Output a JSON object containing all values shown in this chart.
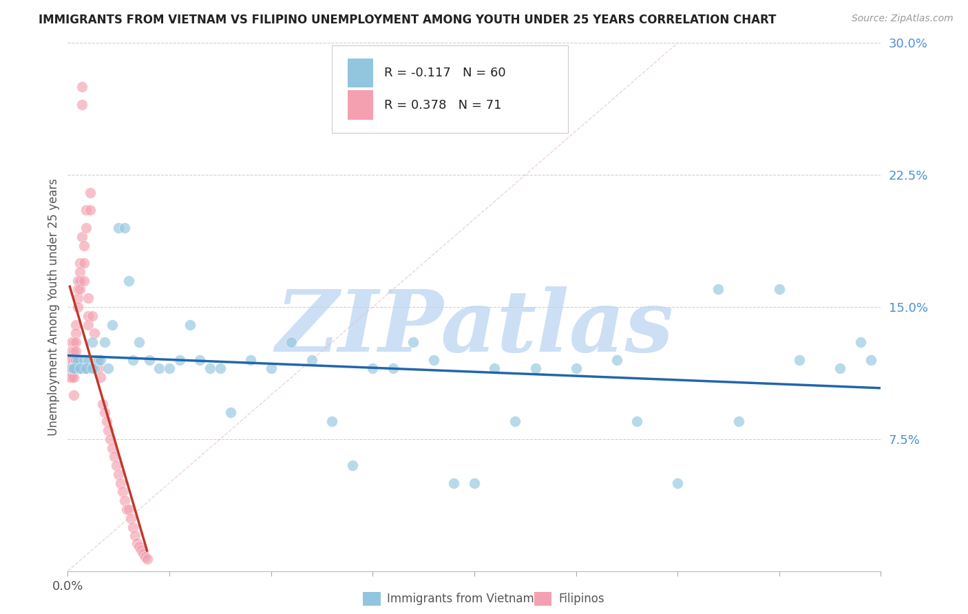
{
  "title": "IMMIGRANTS FROM VIETNAM VS FILIPINO UNEMPLOYMENT AMONG YOUTH UNDER 25 YEARS CORRELATION CHART",
  "source": "Source: ZipAtlas.com",
  "ylabel": "Unemployment Among Youth under 25 years",
  "xlim": [
    0.0,
    0.4
  ],
  "ylim": [
    0.0,
    0.3
  ],
  "xticks": [
    0.0,
    0.05,
    0.1,
    0.15,
    0.2,
    0.25,
    0.3,
    0.35,
    0.4
  ],
  "xtick_labels_show": {
    "0.0": "0.0%"
  },
  "yticks_right": [
    0.075,
    0.15,
    0.225,
    0.3
  ],
  "ytick_labels_right": [
    "7.5%",
    "15.0%",
    "22.5%",
    "30.0%"
  ],
  "legend1_label": "Immigrants from Vietnam",
  "legend2_label": "Filipinos",
  "R1": -0.117,
  "N1": 60,
  "R2": 0.378,
  "N2": 71,
  "color_blue": "#92c5de",
  "color_pink": "#f4a0b0",
  "trendline_blue": "#2166ac",
  "trendline_pink": "#c0392b",
  "refline_color": "#e0b0b0",
  "watermark": "ZIPatlas",
  "watermark_color": "#ccdff5",
  "blue_x": [
    0.002,
    0.003,
    0.004,
    0.005,
    0.006,
    0.007,
    0.008,
    0.009,
    0.01,
    0.012,
    0.013,
    0.015,
    0.018,
    0.02,
    0.022,
    0.025,
    0.028,
    0.03,
    0.032,
    0.035,
    0.04,
    0.045,
    0.05,
    0.055,
    0.06,
    0.065,
    0.07,
    0.075,
    0.08,
    0.09,
    0.1,
    0.11,
    0.12,
    0.13,
    0.14,
    0.15,
    0.16,
    0.17,
    0.18,
    0.19,
    0.2,
    0.21,
    0.22,
    0.23,
    0.25,
    0.27,
    0.28,
    0.3,
    0.32,
    0.33,
    0.35,
    0.36,
    0.38,
    0.39,
    0.395,
    0.003,
    0.006,
    0.009,
    0.012,
    0.016
  ],
  "blue_y": [
    0.115,
    0.115,
    0.12,
    0.12,
    0.115,
    0.115,
    0.12,
    0.115,
    0.12,
    0.13,
    0.115,
    0.12,
    0.13,
    0.115,
    0.14,
    0.195,
    0.195,
    0.165,
    0.12,
    0.13,
    0.12,
    0.115,
    0.115,
    0.12,
    0.14,
    0.12,
    0.115,
    0.115,
    0.09,
    0.12,
    0.115,
    0.13,
    0.12,
    0.085,
    0.06,
    0.115,
    0.115,
    0.13,
    0.12,
    0.05,
    0.05,
    0.115,
    0.085,
    0.115,
    0.115,
    0.12,
    0.085,
    0.05,
    0.16,
    0.085,
    0.16,
    0.12,
    0.115,
    0.13,
    0.12,
    0.115,
    0.115,
    0.115,
    0.115,
    0.12
  ],
  "pink_x": [
    0.001,
    0.001,
    0.001,
    0.001,
    0.001,
    0.002,
    0.002,
    0.002,
    0.002,
    0.002,
    0.002,
    0.003,
    0.003,
    0.003,
    0.003,
    0.003,
    0.003,
    0.004,
    0.004,
    0.004,
    0.004,
    0.004,
    0.005,
    0.005,
    0.005,
    0.005,
    0.006,
    0.006,
    0.006,
    0.006,
    0.007,
    0.007,
    0.007,
    0.008,
    0.008,
    0.008,
    0.009,
    0.009,
    0.01,
    0.01,
    0.01,
    0.011,
    0.011,
    0.012,
    0.013,
    0.014,
    0.015,
    0.016,
    0.017,
    0.018,
    0.019,
    0.02,
    0.021,
    0.022,
    0.023,
    0.024,
    0.025,
    0.026,
    0.027,
    0.028,
    0.029,
    0.03,
    0.031,
    0.032,
    0.033,
    0.034,
    0.035,
    0.036,
    0.037,
    0.038,
    0.039
  ],
  "pink_y": [
    0.12,
    0.115,
    0.115,
    0.11,
    0.11,
    0.13,
    0.125,
    0.12,
    0.115,
    0.11,
    0.11,
    0.13,
    0.125,
    0.12,
    0.115,
    0.11,
    0.1,
    0.14,
    0.135,
    0.13,
    0.125,
    0.12,
    0.165,
    0.16,
    0.155,
    0.15,
    0.175,
    0.17,
    0.165,
    0.16,
    0.275,
    0.265,
    0.19,
    0.185,
    0.175,
    0.165,
    0.205,
    0.195,
    0.155,
    0.145,
    0.14,
    0.215,
    0.205,
    0.145,
    0.135,
    0.12,
    0.115,
    0.11,
    0.095,
    0.09,
    0.085,
    0.08,
    0.075,
    0.07,
    0.065,
    0.06,
    0.055,
    0.05,
    0.045,
    0.04,
    0.035,
    0.035,
    0.03,
    0.025,
    0.02,
    0.016,
    0.014,
    0.012,
    0.01,
    0.008,
    0.007
  ]
}
